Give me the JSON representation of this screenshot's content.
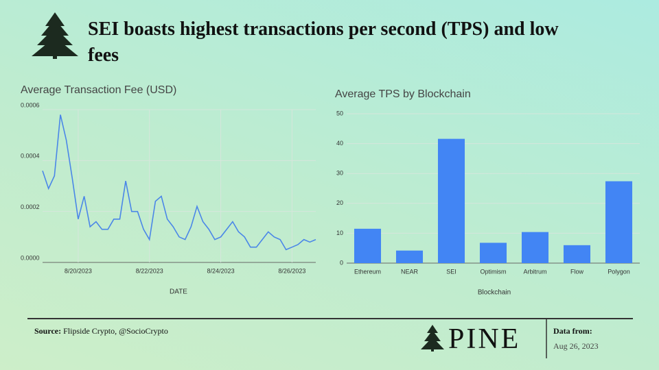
{
  "header": {
    "title": "SEI boasts highest transactions per second (TPS) and low fees"
  },
  "chart_data": [
    {
      "type": "line",
      "title": "Average Transaction Fee (USD)",
      "x_label": "DATE",
      "color": "#4a86e8",
      "categories": [
        null,
        null,
        null,
        null,
        null,
        null,
        "8/20/2023",
        null,
        null,
        null,
        null,
        null,
        null,
        null,
        null,
        null,
        null,
        null,
        "8/22/2023",
        null,
        null,
        null,
        null,
        null,
        null,
        null,
        null,
        null,
        null,
        null,
        "8/24/2023",
        null,
        null,
        null,
        null,
        null,
        null,
        null,
        null,
        null,
        null,
        null,
        "8/26/2023",
        null,
        null,
        null,
        null
      ],
      "values": [
        0.00036,
        0.00029,
        0.00034,
        0.00058,
        0.00048,
        0.00033,
        0.00017,
        0.00026,
        0.00014,
        0.00016,
        0.00013,
        0.00013,
        0.00017,
        0.00017,
        0.00032,
        0.0002,
        0.0002,
        0.00013,
        9e-05,
        0.00024,
        0.00026,
        0.00017,
        0.00014,
        0.0001,
        9e-05,
        0.00014,
        0.00022,
        0.00016,
        0.00013,
        9e-05,
        0.0001,
        0.00013,
        0.00016,
        0.00012,
        0.0001,
        6e-05,
        6e-05,
        9e-05,
        0.00012,
        0.0001,
        9e-05,
        5e-05,
        6e-05,
        7e-05,
        9e-05,
        8e-05,
        9e-05
      ],
      "ylim": [
        0,
        0.0006
      ],
      "yticks": [
        {
          "value": 0,
          "label": "0.0000"
        },
        {
          "value": 0.0002,
          "label": "0.0002"
        },
        {
          "value": 0.0004,
          "label": "0.0004"
        },
        {
          "value": 0.0006,
          "label": "0.0006"
        }
      ],
      "grid": true
    },
    {
      "type": "bar",
      "title": "Average TPS by Blockchain",
      "x_label": "Blockchain",
      "color": "#4285f4",
      "categories": [
        "Ethereum",
        "NEAR",
        "SEI",
        "Optimism",
        "Arbitrum",
        "Flow",
        "Polygon"
      ],
      "values": [
        11.5,
        4.2,
        41.6,
        6.8,
        10.4,
        6.0,
        27.4
      ],
      "ylim": [
        0,
        50
      ],
      "yticks": [
        0,
        10,
        20,
        30,
        40,
        50
      ],
      "grid": true
    }
  ],
  "footer": {
    "source_label": "Source:",
    "source": "Flipside Crypto, @SocioCrypto",
    "logo": "PINE",
    "date_label": "Data from:",
    "date": "Aug 26, 2023"
  }
}
